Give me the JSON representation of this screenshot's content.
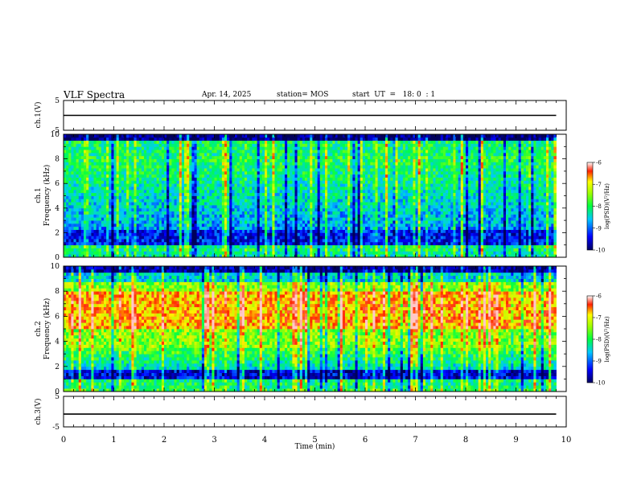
{
  "header": {
    "title": "VLF Spectra",
    "date": "Apr. 14, 2025",
    "station": "station= MOS",
    "start_ut": "start  UT  =   18: 0  : 1"
  },
  "colors": {
    "axis": "#000000",
    "spec_low": "#000080",
    "spec_high": "#ff0000"
  },
  "chart_data": [
    {
      "type": "line",
      "name": "ch1-voltage",
      "ylabel": "ch.1(V)",
      "ylim": [
        -5,
        5
      ],
      "yticks": [
        5,
        -5
      ],
      "xlim": [
        0,
        10
      ],
      "series": [
        {
          "name": "ch.1",
          "x": [
            0,
            9.8
          ],
          "values": [
            0,
            0
          ]
        }
      ]
    },
    {
      "type": "heatmap",
      "name": "ch1-spectrogram",
      "ylabel_top": "ch.1",
      "ylabel": "Frequency (kHz)",
      "ylim": [
        0,
        10
      ],
      "yticks": [
        0,
        2,
        4,
        6,
        8,
        10
      ],
      "xlim": [
        0,
        10
      ],
      "data_end_min": 9.8,
      "colorbar": {
        "label": "log(PSD)(V²/Hz)",
        "range": [
          -10,
          -6
        ],
        "ticks": [
          -6,
          -7,
          -8,
          -9,
          -10
        ]
      }
    },
    {
      "type": "heatmap",
      "name": "ch2-spectrogram",
      "ylabel_top": "ch.2",
      "ylabel": "Frequency (kHz)",
      "ylim": [
        0,
        10
      ],
      "yticks": [
        0,
        2,
        4,
        6,
        8,
        10
      ],
      "xlim": [
        0,
        10
      ],
      "data_end_min": 9.8,
      "colorbar": {
        "label": "log(PSD)(V²/Hz)",
        "range": [
          -10,
          -6
        ],
        "ticks": [
          -6,
          -7,
          -8,
          -9,
          -10
        ]
      }
    },
    {
      "type": "line",
      "name": "ch3-voltage",
      "ylabel": "ch.3(V)",
      "ylim": [
        -5,
        5
      ],
      "yticks": [
        5,
        -5
      ],
      "xlim": [
        0,
        10
      ],
      "xlabel": "Time  (min)",
      "xticks": [
        0,
        1,
        2,
        3,
        4,
        5,
        6,
        7,
        8,
        9,
        10
      ],
      "series": [
        {
          "name": "ch.3",
          "x": [
            0,
            9.8
          ],
          "values": [
            -0.8,
            -0.8
          ]
        }
      ]
    }
  ]
}
